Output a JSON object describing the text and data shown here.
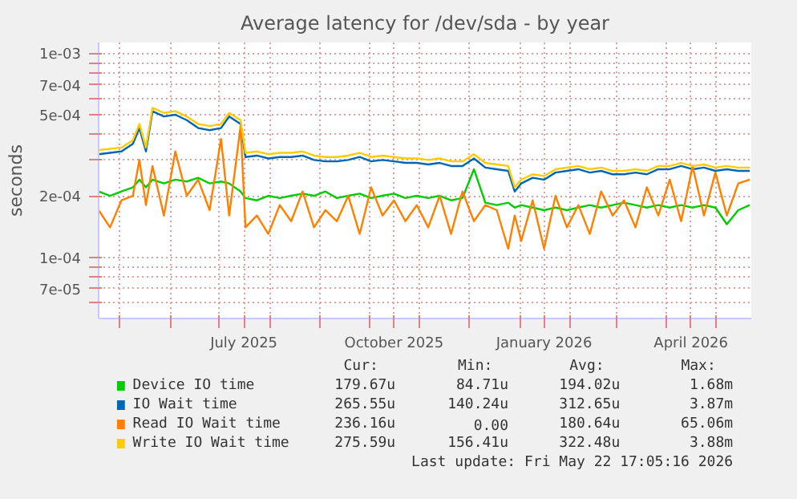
{
  "chart_data": {
    "type": "line",
    "title": "Average latency for /dev/sda - by year",
    "ylabel": "seconds",
    "log": "y",
    "grid": true,
    "legend": "bottom",
    "ylim": [
      5e-05,
      0.00113
    ],
    "yticks": [
      {
        "value": 0.001,
        "label": "1e-03"
      },
      {
        "value": 0.0009,
        "label": null
      },
      {
        "value": 0.0008,
        "label": null
      },
      {
        "value": 0.0007,
        "label": "7e-04"
      },
      {
        "value": 0.0006,
        "label": null
      },
      {
        "value": 0.0005,
        "label": "5e-04"
      },
      {
        "value": 0.0004,
        "label": null
      },
      {
        "value": 0.0003,
        "label": null
      },
      {
        "value": 0.0002,
        "label": "2e-04"
      },
      {
        "value": 0.0001,
        "label": "1e-04"
      },
      {
        "value": 9e-05,
        "label": null
      },
      {
        "value": 8e-05,
        "label": null
      },
      {
        "value": 7e-05,
        "label": "7e-05"
      },
      {
        "value": 6e-05,
        "label": null
      }
    ],
    "xlim": [
      "2025-04-18",
      "2026-05-23"
    ],
    "xticks": [
      {
        "value": "2025-05-01",
        "label": null
      },
      {
        "value": "2025-06-01",
        "label": null
      },
      {
        "value": "2025-07-01",
        "label": null
      },
      {
        "value": "2025-07-16",
        "label": "July 2025"
      },
      {
        "value": "2025-08-01",
        "label": null
      },
      {
        "value": "2025-09-01",
        "label": null
      },
      {
        "value": "2025-10-01",
        "label": null
      },
      {
        "value": "2025-10-16",
        "label": "October 2025"
      },
      {
        "value": "2025-11-01",
        "label": null
      },
      {
        "value": "2025-12-01",
        "label": null
      },
      {
        "value": "2026-01-01",
        "label": null
      },
      {
        "value": "2026-01-16",
        "label": "January 2026"
      },
      {
        "value": "2026-02-01",
        "label": null
      },
      {
        "value": "2026-03-01",
        "label": null
      },
      {
        "value": "2026-04-01",
        "label": null
      },
      {
        "value": "2026-04-16",
        "label": "April 2026"
      },
      {
        "value": "2026-05-01",
        "label": null
      }
    ],
    "x": [
      "2025-04-18",
      "2025-04-25",
      "2025-05-02",
      "2025-05-09",
      "2025-05-13",
      "2025-05-17",
      "2025-05-21",
      "2025-05-28",
      "2025-06-04",
      "2025-06-11",
      "2025-06-18",
      "2025-06-25",
      "2025-07-02",
      "2025-07-07",
      "2025-07-14",
      "2025-07-17",
      "2025-07-24",
      "2025-07-31",
      "2025-08-07",
      "2025-08-14",
      "2025-08-21",
      "2025-08-28",
      "2025-09-04",
      "2025-09-11",
      "2025-09-18",
      "2025-09-25",
      "2025-10-02",
      "2025-10-09",
      "2025-10-16",
      "2025-10-23",
      "2025-10-30",
      "2025-11-06",
      "2025-11-13",
      "2025-11-20",
      "2025-11-27",
      "2025-12-04",
      "2025-12-11",
      "2025-12-18",
      "2025-12-25",
      "2025-12-29",
      "2026-01-02",
      "2026-01-09",
      "2026-01-16",
      "2026-01-23",
      "2026-01-30",
      "2026-02-06",
      "2026-02-13",
      "2026-02-20",
      "2026-02-27",
      "2026-03-06",
      "2026-03-13",
      "2026-03-20",
      "2026-03-27",
      "2026-04-03",
      "2026-04-10",
      "2026-04-17",
      "2026-04-24",
      "2026-05-01",
      "2026-05-08",
      "2026-05-15",
      "2026-05-22"
    ],
    "series": [
      {
        "name": "Device IO time",
        "color": "#00cc00",
        "values": [
          0.00021,
          0.0002,
          0.00021,
          0.00022,
          0.00024,
          0.00022,
          0.00024,
          0.00023,
          0.00024,
          0.000235,
          0.000245,
          0.00023,
          0.000235,
          0.00023,
          0.00021,
          0.000195,
          0.00019,
          0.0002,
          0.000195,
          0.0002,
          0.000205,
          0.0002,
          0.00021,
          0.000195,
          0.0002,
          0.000205,
          0.000195,
          0.0002,
          0.000205,
          0.000195,
          0.0002,
          0.000195,
          0.0002,
          0.00019,
          0.000195,
          0.00027,
          0.000185,
          0.00018,
          0.000185,
          0.000175,
          0.00018,
          0.000175,
          0.00017,
          0.000175,
          0.00017,
          0.000175,
          0.00018,
          0.000175,
          0.00018,
          0.000185,
          0.00018,
          0.000175,
          0.00018,
          0.000175,
          0.00018,
          0.000175,
          0.00018,
          0.000175,
          0.000145,
          0.00017,
          0.00018
        ]
      },
      {
        "name": "IO Wait time",
        "color": "#0066b3",
        "values": [
          0.00032,
          0.000325,
          0.00033,
          0.00036,
          0.00043,
          0.00033,
          0.00052,
          0.00049,
          0.0005,
          0.00047,
          0.00043,
          0.00042,
          0.00043,
          0.00049,
          0.00045,
          0.00031,
          0.000315,
          0.000305,
          0.00031,
          0.00031,
          0.000315,
          0.0003,
          0.000295,
          0.000295,
          0.0003,
          0.00031,
          0.000295,
          0.0003,
          0.000295,
          0.00029,
          0.00029,
          0.000285,
          0.00029,
          0.00028,
          0.00028,
          0.000305,
          0.000275,
          0.00027,
          0.000265,
          0.00021,
          0.00023,
          0.000245,
          0.00024,
          0.00026,
          0.000265,
          0.00027,
          0.00026,
          0.000265,
          0.000255,
          0.000255,
          0.00026,
          0.000255,
          0.00027,
          0.00027,
          0.00028,
          0.00027,
          0.000275,
          0.000265,
          0.00027,
          0.000265,
          0.000265
        ]
      },
      {
        "name": "Read IO Wait time",
        "color": "#ff8000",
        "values": [
          0.00017,
          0.00014,
          0.00019,
          0.0002,
          0.0003,
          0.00018,
          0.00028,
          0.00016,
          0.00033,
          0.0002,
          0.00024,
          0.00017,
          0.00038,
          0.00016,
          0.00044,
          0.00014,
          0.00016,
          0.00013,
          0.00018,
          0.00015,
          0.00021,
          0.00014,
          0.00017,
          0.00015,
          0.0002,
          0.00013,
          0.00022,
          0.00016,
          0.00019,
          0.00015,
          0.00018,
          0.00014,
          0.0002,
          0.00013,
          0.00021,
          0.00015,
          0.00018,
          0.00017,
          0.00011,
          0.00016,
          0.00012,
          0.00019,
          0.00011,
          0.0002,
          0.00014,
          0.00018,
          0.00013,
          0.00021,
          0.00016,
          0.00019,
          0.00014,
          0.00022,
          0.00016,
          0.00024,
          0.00015,
          0.00028,
          0.00016,
          0.00026,
          0.00016,
          0.00023,
          0.00024
        ]
      },
      {
        "name": "Write IO Wait time",
        "color": "#ffcc00",
        "values": [
          0.000335,
          0.00034,
          0.000345,
          0.000375,
          0.00045,
          0.000345,
          0.00054,
          0.00051,
          0.00052,
          0.00049,
          0.00045,
          0.00044,
          0.00045,
          0.00051,
          0.00047,
          0.000325,
          0.00033,
          0.00032,
          0.000325,
          0.000325,
          0.00033,
          0.000315,
          0.00031,
          0.00031,
          0.000315,
          0.000325,
          0.00031,
          0.000315,
          0.00031,
          0.000305,
          0.000305,
          0.0003,
          0.000305,
          0.000295,
          0.000295,
          0.00032,
          0.00029,
          0.000285,
          0.00028,
          0.00022,
          0.00024,
          0.000255,
          0.00025,
          0.00027,
          0.000275,
          0.00028,
          0.00027,
          0.000275,
          0.000265,
          0.000265,
          0.00027,
          0.000265,
          0.00028,
          0.00028,
          0.00029,
          0.00028,
          0.000285,
          0.000275,
          0.00028,
          0.000275,
          0.000275
        ]
      }
    ],
    "annotations": [
      "Cur:",
      "Min:",
      "Avg:",
      "Max:",
      "179.67u",
      "84.71u",
      "194.02u",
      "1.68m",
      "265.55u",
      "140.24u",
      "312.65u",
      "3.87m",
      "236.16u",
      "0.00",
      "180.64u",
      "65.06m",
      "275.59u",
      "156.41u",
      "322.48u",
      "3.88m",
      "Last update: Fri May 22 17:05:16 2026"
    ]
  }
}
